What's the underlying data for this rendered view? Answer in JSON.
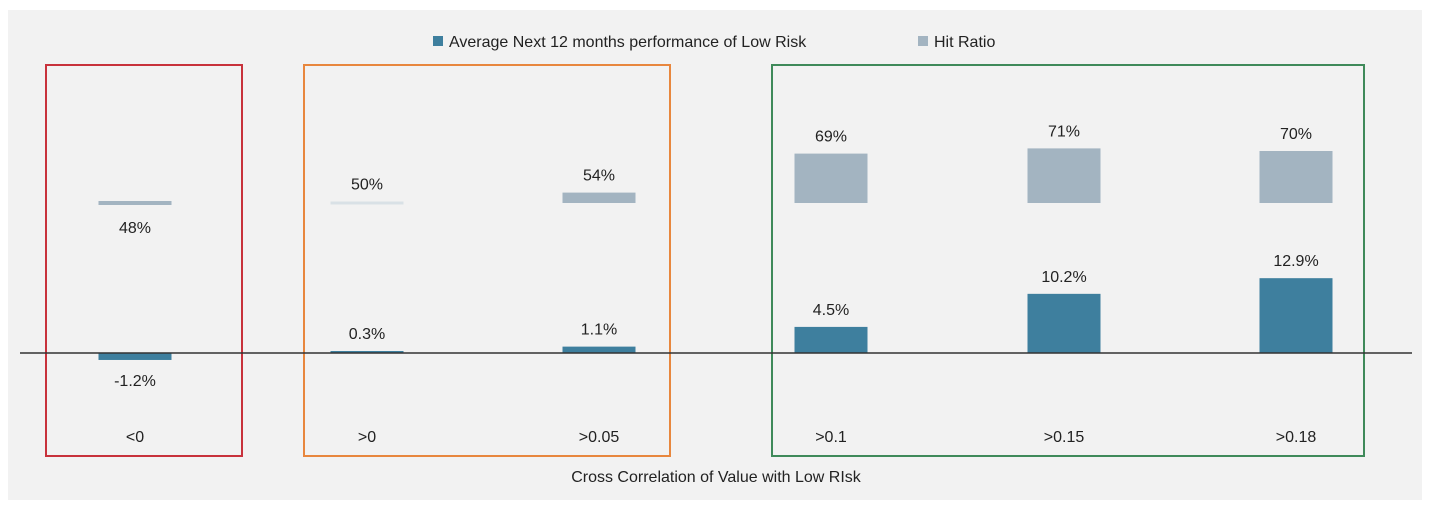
{
  "chart_data": {
    "type": "bar",
    "title": "",
    "xlabel": "Cross Correlation of Value with Low RIsk",
    "ylabel": "",
    "categories": [
      "<0",
      ">0",
      ">0.05",
      ">0.1",
      ">0.15",
      ">0.18"
    ],
    "series": [
      {
        "name": "Average Next 12 months performance of Low Risk",
        "values": [
          -1.2,
          0.3,
          1.1,
          4.5,
          10.2,
          12.9
        ],
        "labels": [
          "-1.2%",
          "0.3%",
          "1.1%",
          "4.5%",
          "10.2%",
          "12.9%"
        ],
        "color": "#3e7f9e"
      },
      {
        "name": "Hit Ratio",
        "values": [
          48,
          50,
          54,
          69,
          71,
          70
        ],
        "labels": [
          "48%",
          "50%",
          "54%",
          "69%",
          "71%",
          "70%"
        ],
        "color": "#a3b4c1"
      }
    ],
    "groups": [
      {
        "categories": [
          0
        ],
        "color": "#c8323c"
      },
      {
        "categories": [
          1,
          2
        ],
        "color": "#e8873e"
      },
      {
        "categories": [
          3,
          4,
          5
        ],
        "color": "#3f8a5a"
      }
    ],
    "hit_ratio_baseline": 50,
    "legend_position": "top-center",
    "grid": false,
    "background_color": "#f2f2f2"
  }
}
